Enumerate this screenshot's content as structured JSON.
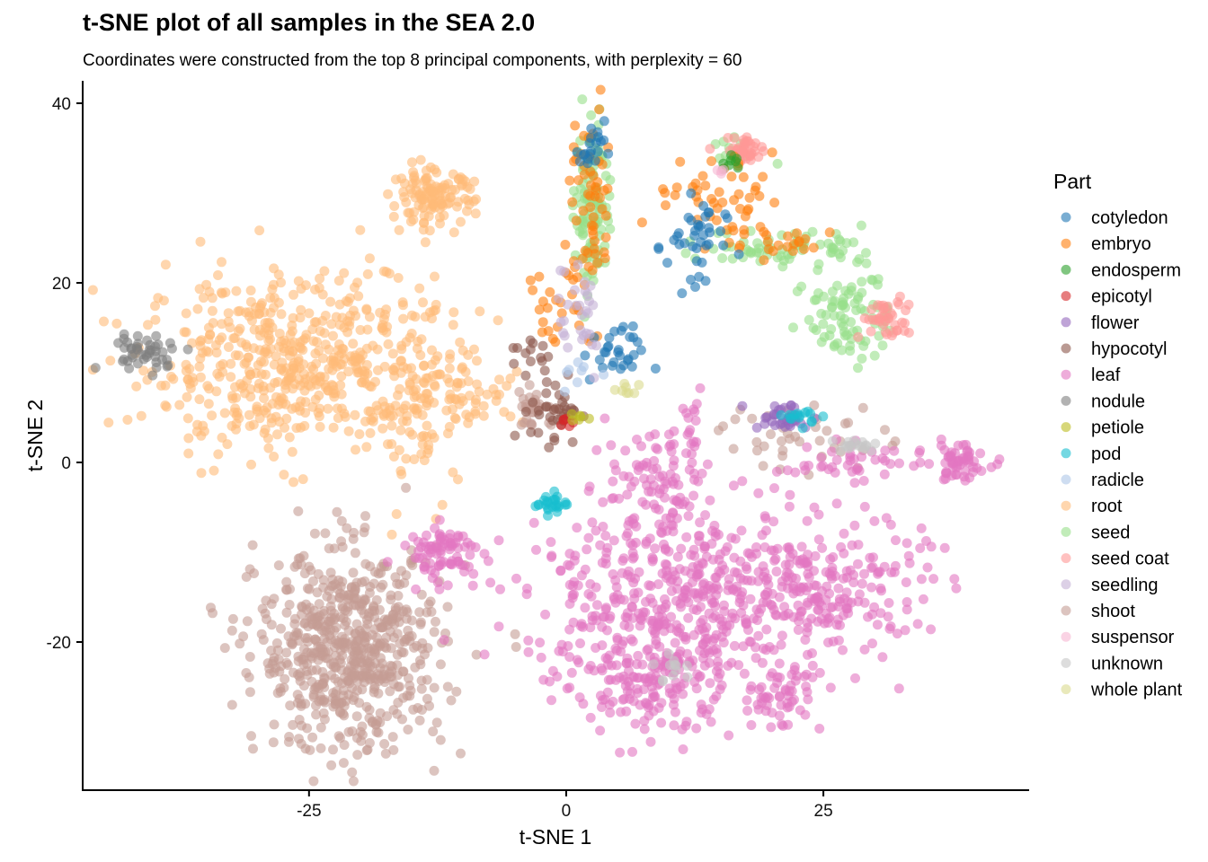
{
  "chart_data": {
    "type": "scatter",
    "title": "t-SNE plot of all samples in the SEA 2.0",
    "subtitle": "Coordinates were constructed from the top 8 principal components, with perplexity = 60",
    "xlabel": "t-SNE 1",
    "ylabel": "t-SNE 2",
    "xlim": [
      -47,
      45
    ],
    "ylim": [
      -36.5,
      42.5
    ],
    "xticks": [
      -25,
      0,
      25
    ],
    "xtick_labels": [
      "-25",
      "0",
      "25"
    ],
    "yticks": [
      -20,
      0,
      20,
      40
    ],
    "ytick_labels": [
      "-20",
      "0",
      "20",
      "40"
    ],
    "grid": false,
    "legend": {
      "title": "Part",
      "placement": "right",
      "entries": [
        {
          "label": "cotyledon",
          "color": "#1f77b4"
        },
        {
          "label": "embryo",
          "color": "#ff7f0e"
        },
        {
          "label": "endosperm",
          "color": "#2ca02c"
        },
        {
          "label": "epicotyl",
          "color": "#d62728"
        },
        {
          "label": "flower",
          "color": "#9467bd"
        },
        {
          "label": "hypocotyl",
          "color": "#8c564b"
        },
        {
          "label": "leaf",
          "color": "#e377c2"
        },
        {
          "label": "nodule",
          "color": "#7f7f7f"
        },
        {
          "label": "petiole",
          "color": "#bcbd22"
        },
        {
          "label": "pod",
          "color": "#17becf"
        },
        {
          "label": "radicle",
          "color": "#aec7e8"
        },
        {
          "label": "root",
          "color": "#ffbb78"
        },
        {
          "label": "seed",
          "color": "#98df8a"
        },
        {
          "label": "seed coat",
          "color": "#ff9896"
        },
        {
          "label": "seedling",
          "color": "#c5b0d5"
        },
        {
          "label": "shoot",
          "color": "#c49c94"
        },
        {
          "label": "suspensor",
          "color": "#f7b6d2"
        },
        {
          "label": "unknown",
          "color": "#c7c7c7"
        },
        {
          "label": "whole plant",
          "color": "#dbdb8d"
        }
      ]
    },
    "point_opacity": 0.6,
    "clusters": [
      {
        "series": "root",
        "cx": -27,
        "cy": 11,
        "sx": 7,
        "sy": 5,
        "n": 520
      },
      {
        "series": "root",
        "cx": -14,
        "cy": 7,
        "sx": 2.5,
        "sy": 5,
        "n": 120
      },
      {
        "series": "root",
        "cx": -13,
        "cy": 29.5,
        "sx": 2,
        "sy": 1.5,
        "n": 120
      },
      {
        "series": "root",
        "cx": -8,
        "cy": 7.5,
        "sx": 2,
        "sy": 1.5,
        "n": 25
      },
      {
        "series": "nodule",
        "cx": -41,
        "cy": 12.3,
        "sx": 2,
        "sy": 1,
        "n": 45
      },
      {
        "series": "shoot",
        "cx": -21,
        "cy": -21,
        "sx": 4.5,
        "sy": 5.5,
        "n": 650
      },
      {
        "series": "shoot",
        "cx": -3,
        "cy": 6,
        "sx": 1.2,
        "sy": 1.2,
        "n": 30
      },
      {
        "series": "shoot",
        "cx": 23,
        "cy": 3,
        "sx": 4,
        "sy": 2,
        "n": 40
      },
      {
        "series": "leaf",
        "cx": 10,
        "cy": -15,
        "sx": 7,
        "sy": 5,
        "n": 450
      },
      {
        "series": "leaf",
        "cx": 25,
        "cy": -14,
        "sx": 5,
        "sy": 4,
        "n": 220
      },
      {
        "series": "leaf",
        "cx": 8,
        "cy": -25,
        "sx": 4,
        "sy": 3,
        "n": 140
      },
      {
        "series": "leaf",
        "cx": 21,
        "cy": -26,
        "sx": 2,
        "sy": 2,
        "n": 60
      },
      {
        "series": "leaf",
        "cx": -12,
        "cy": -10,
        "sx": 2,
        "sy": 1.5,
        "n": 80
      },
      {
        "series": "leaf",
        "cx": 38,
        "cy": 0,
        "sx": 1.5,
        "sy": 1,
        "n": 60
      },
      {
        "series": "leaf",
        "cx": 9,
        "cy": -2,
        "sx": 2.5,
        "sy": 3,
        "n": 90
      },
      {
        "series": "leaf",
        "cx": 27,
        "cy": 0,
        "sx": 3,
        "sy": 1,
        "n": 40
      },
      {
        "series": "leaf",
        "cx": 12,
        "cy": 5,
        "sx": 0.5,
        "sy": 1.5,
        "n": 12
      },
      {
        "series": "seed",
        "cx": 2.5,
        "cy": 29,
        "sx": 0.8,
        "sy": 5,
        "n": 110
      },
      {
        "series": "seed",
        "cx": 21,
        "cy": 24,
        "sx": 4,
        "sy": 1,
        "n": 60
      },
      {
        "series": "seed",
        "cx": 27.5,
        "cy": 17,
        "sx": 2,
        "sy": 3,
        "n": 90
      },
      {
        "series": "seed",
        "cx": 17,
        "cy": 35,
        "sx": 1.5,
        "sy": 1,
        "n": 10
      },
      {
        "series": "seed coat",
        "cx": 17.5,
        "cy": 34.8,
        "sx": 1.2,
        "sy": 0.7,
        "n": 40
      },
      {
        "series": "seed coat",
        "cx": 31,
        "cy": 16,
        "sx": 1.2,
        "sy": 1.2,
        "n": 40
      },
      {
        "series": "embryo",
        "cx": 2.5,
        "cy": 28,
        "sx": 1,
        "sy": 6,
        "n": 60
      },
      {
        "series": "embryo",
        "cx": 15,
        "cy": 29,
        "sx": 3.5,
        "sy": 2.5,
        "n": 50
      },
      {
        "series": "embryo",
        "cx": 21,
        "cy": 24.5,
        "sx": 2,
        "sy": 1,
        "n": 20
      },
      {
        "series": "embryo",
        "cx": -1,
        "cy": 17,
        "sx": 1.5,
        "sy": 3,
        "n": 25
      },
      {
        "series": "cotyledon",
        "cx": 12.5,
        "cy": 24,
        "sx": 1.5,
        "sy": 3,
        "n": 40
      },
      {
        "series": "cotyledon",
        "cx": 4.5,
        "cy": 12,
        "sx": 1.5,
        "sy": 1.5,
        "n": 30
      },
      {
        "series": "cotyledon",
        "cx": 2.5,
        "cy": 35,
        "sx": 0.6,
        "sy": 1.5,
        "n": 20
      },
      {
        "series": "endosperm",
        "cx": 16,
        "cy": 33,
        "sx": 0.4,
        "sy": 0.6,
        "n": 8
      },
      {
        "series": "flower",
        "cx": 21,
        "cy": 5,
        "sx": 1.5,
        "sy": 0.8,
        "n": 35
      },
      {
        "series": "hypocotyl",
        "cx": -1,
        "cy": 6,
        "sx": 1.2,
        "sy": 2,
        "n": 40
      },
      {
        "series": "hypocotyl",
        "cx": -3.5,
        "cy": 12,
        "sx": 1,
        "sy": 1,
        "n": 12
      },
      {
        "series": "pod",
        "cx": -1.5,
        "cy": -4.5,
        "sx": 0.8,
        "sy": 0.6,
        "n": 25
      },
      {
        "series": "pod",
        "cx": 23.5,
        "cy": 5,
        "sx": 1,
        "sy": 0.5,
        "n": 15
      },
      {
        "series": "seedling",
        "cx": 1,
        "cy": 17,
        "sx": 1.5,
        "sy": 4,
        "n": 30
      },
      {
        "series": "unknown",
        "cx": 28,
        "cy": 2,
        "sx": 1.2,
        "sy": 0.4,
        "n": 18
      },
      {
        "series": "unknown",
        "cx": 10.5,
        "cy": -23,
        "sx": 1,
        "sy": 1,
        "n": 12
      },
      {
        "series": "epicotyl",
        "cx": 0.2,
        "cy": 4.8,
        "sx": 0.4,
        "sy": 0.3,
        "n": 6
      },
      {
        "series": "petiole",
        "cx": 1.5,
        "cy": 4.8,
        "sx": 0.5,
        "sy": 0.3,
        "n": 6
      },
      {
        "series": "whole plant",
        "cx": 6,
        "cy": 8,
        "sx": 1,
        "sy": 0.5,
        "n": 8
      },
      {
        "series": "radicle",
        "cx": 1.5,
        "cy": 10,
        "sx": 1,
        "sy": 1,
        "n": 8
      },
      {
        "series": "suspensor",
        "cx": 15,
        "cy": 32.5,
        "sx": 0.5,
        "sy": 0.3,
        "n": 4
      }
    ]
  }
}
